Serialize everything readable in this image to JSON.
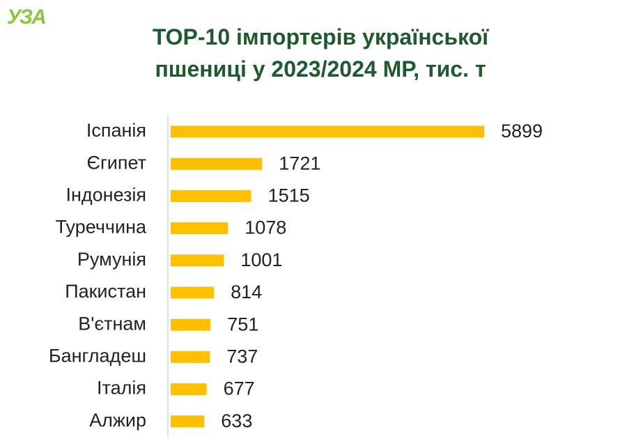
{
  "logo": "УЗА",
  "chart_data": {
    "type": "bar",
    "orientation": "horizontal",
    "title": "ТОР-10 імпортерів української пшениці у 2023/2024 МР, тис. т",
    "categories": [
      "Іспанія",
      "Єгипет",
      "Індонезія",
      "Туреччина",
      "Румунія",
      "Пакистан",
      "В'єтнам",
      "Бангладеш",
      "Італія",
      "Алжир"
    ],
    "values": [
      5899,
      1721,
      1515,
      1078,
      1001,
      814,
      751,
      737,
      677,
      633
    ],
    "color": "#ffc000"
  }
}
